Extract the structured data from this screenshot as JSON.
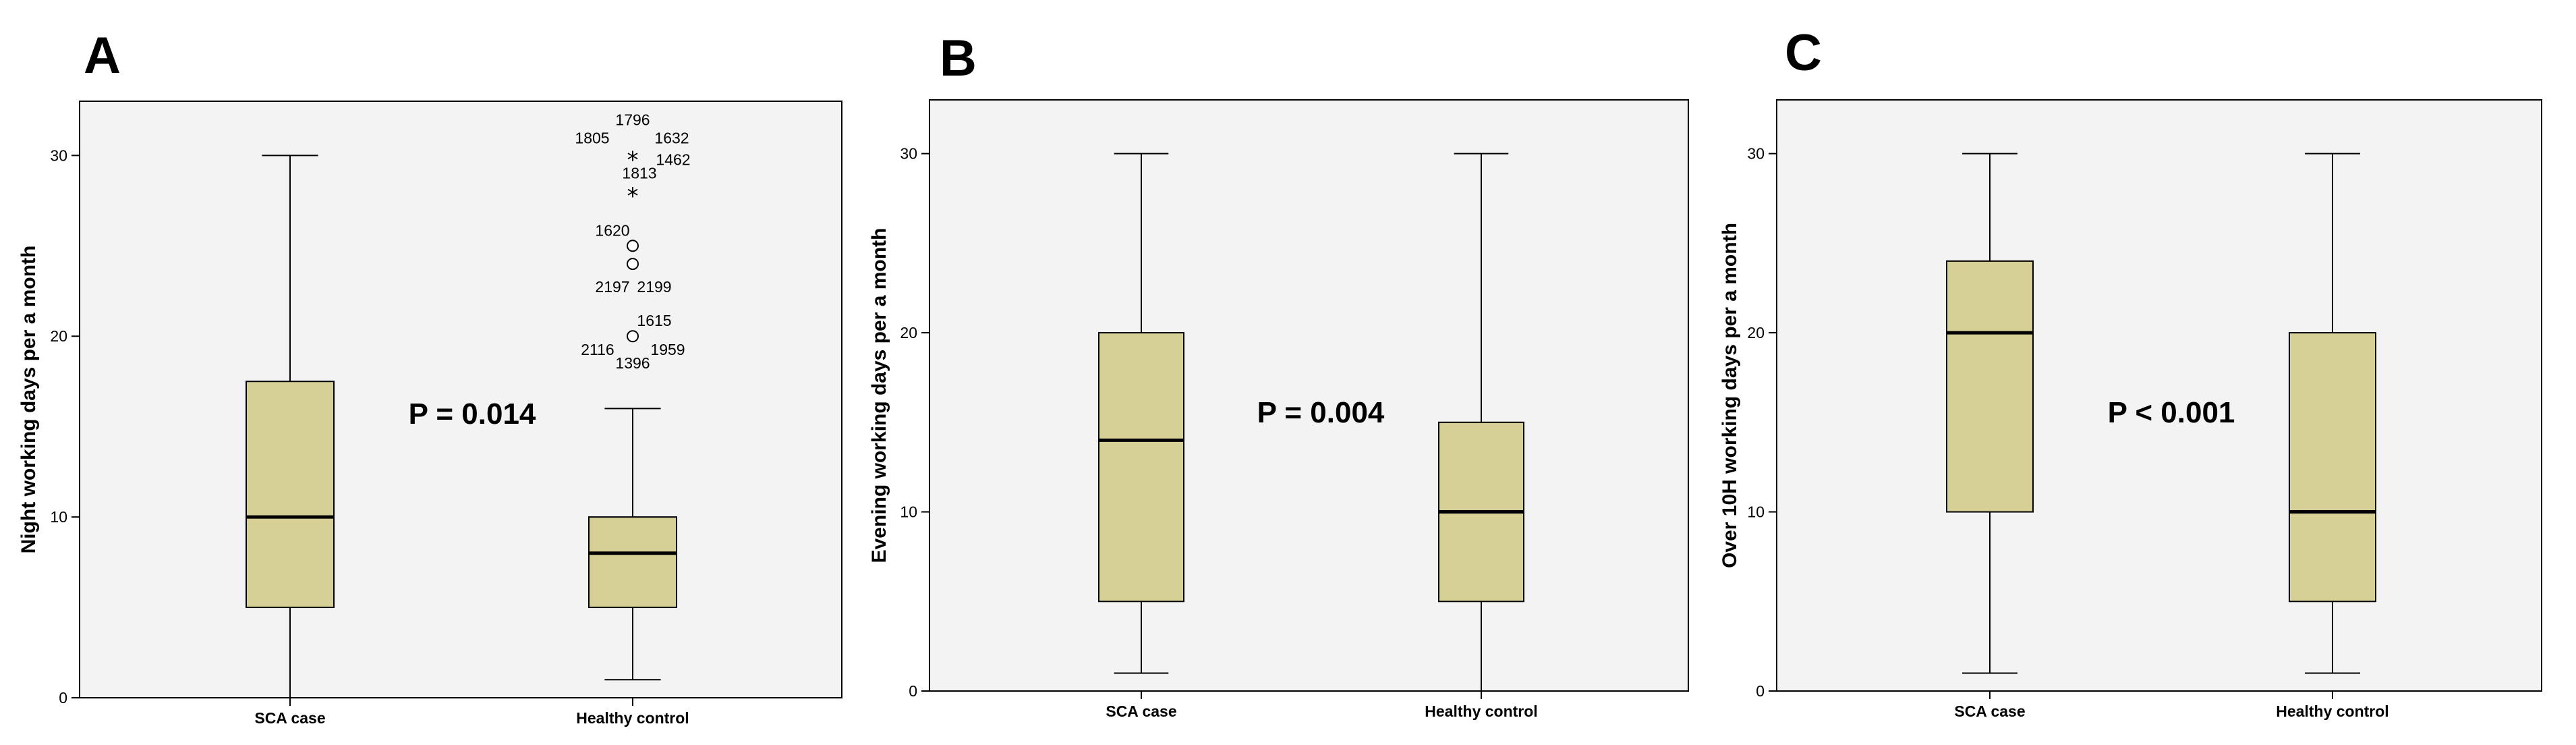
{
  "chart_data": [
    {
      "type": "box",
      "panel_label": "A",
      "ylabel": "Night working days per a month",
      "ylim": [
        0,
        33
      ],
      "yticks": [
        0,
        10,
        20,
        30
      ],
      "categories": [
        "SCA case",
        "Healthy control"
      ],
      "annotation": "P = 0.014",
      "boxes": [
        {
          "category": "SCA case",
          "min": 0,
          "q1": 5,
          "median": 10,
          "q3": 17.5,
          "max": 30,
          "outliers": []
        },
        {
          "category": "Healthy control",
          "min": 1,
          "q1": 5,
          "median": 8,
          "q3": 10,
          "max": 16,
          "outliers": [
            {
              "value": 30,
              "marker": "star",
              "labels": [
                "1796",
                "1805",
                "1632",
                "1462",
                "1813"
              ]
            },
            {
              "value": 28,
              "marker": "star",
              "labels": []
            },
            {
              "value": 25,
              "marker": "circle",
              "labels": [
                "1620"
              ]
            },
            {
              "value": 24,
              "marker": "circle",
              "labels": [
                "2197",
                "2199"
              ]
            },
            {
              "value": 20,
              "marker": "circle",
              "labels": [
                "1615",
                "2116",
                "1959",
                "1396"
              ]
            }
          ]
        }
      ]
    },
    {
      "type": "box",
      "panel_label": "B",
      "ylabel": "Evening working days per a month",
      "ylim": [
        0,
        33
      ],
      "yticks": [
        0,
        10,
        20,
        30
      ],
      "categories": [
        "SCA case",
        "Healthy control"
      ],
      "annotation": "P = 0.004",
      "boxes": [
        {
          "category": "SCA case",
          "min": 1,
          "q1": 5,
          "median": 14,
          "q3": 20,
          "max": 30,
          "outliers": []
        },
        {
          "category": "Healthy control",
          "min": 0,
          "q1": 5,
          "median": 10,
          "q3": 15,
          "max": 30,
          "outliers": []
        }
      ]
    },
    {
      "type": "box",
      "panel_label": "C",
      "ylabel": "Over 10H working days per a month",
      "ylim": [
        0,
        33
      ],
      "yticks": [
        0,
        10,
        20,
        30
      ],
      "categories": [
        "SCA case",
        "Healthy control"
      ],
      "annotation": "P < 0.001",
      "boxes": [
        {
          "category": "SCA case",
          "min": 1,
          "q1": 10,
          "median": 20,
          "q3": 24,
          "max": 30,
          "outliers": []
        },
        {
          "category": "Healthy control",
          "min": 1,
          "q1": 5,
          "median": 10,
          "q3": 20,
          "max": 30,
          "outliers": []
        }
      ]
    }
  ]
}
